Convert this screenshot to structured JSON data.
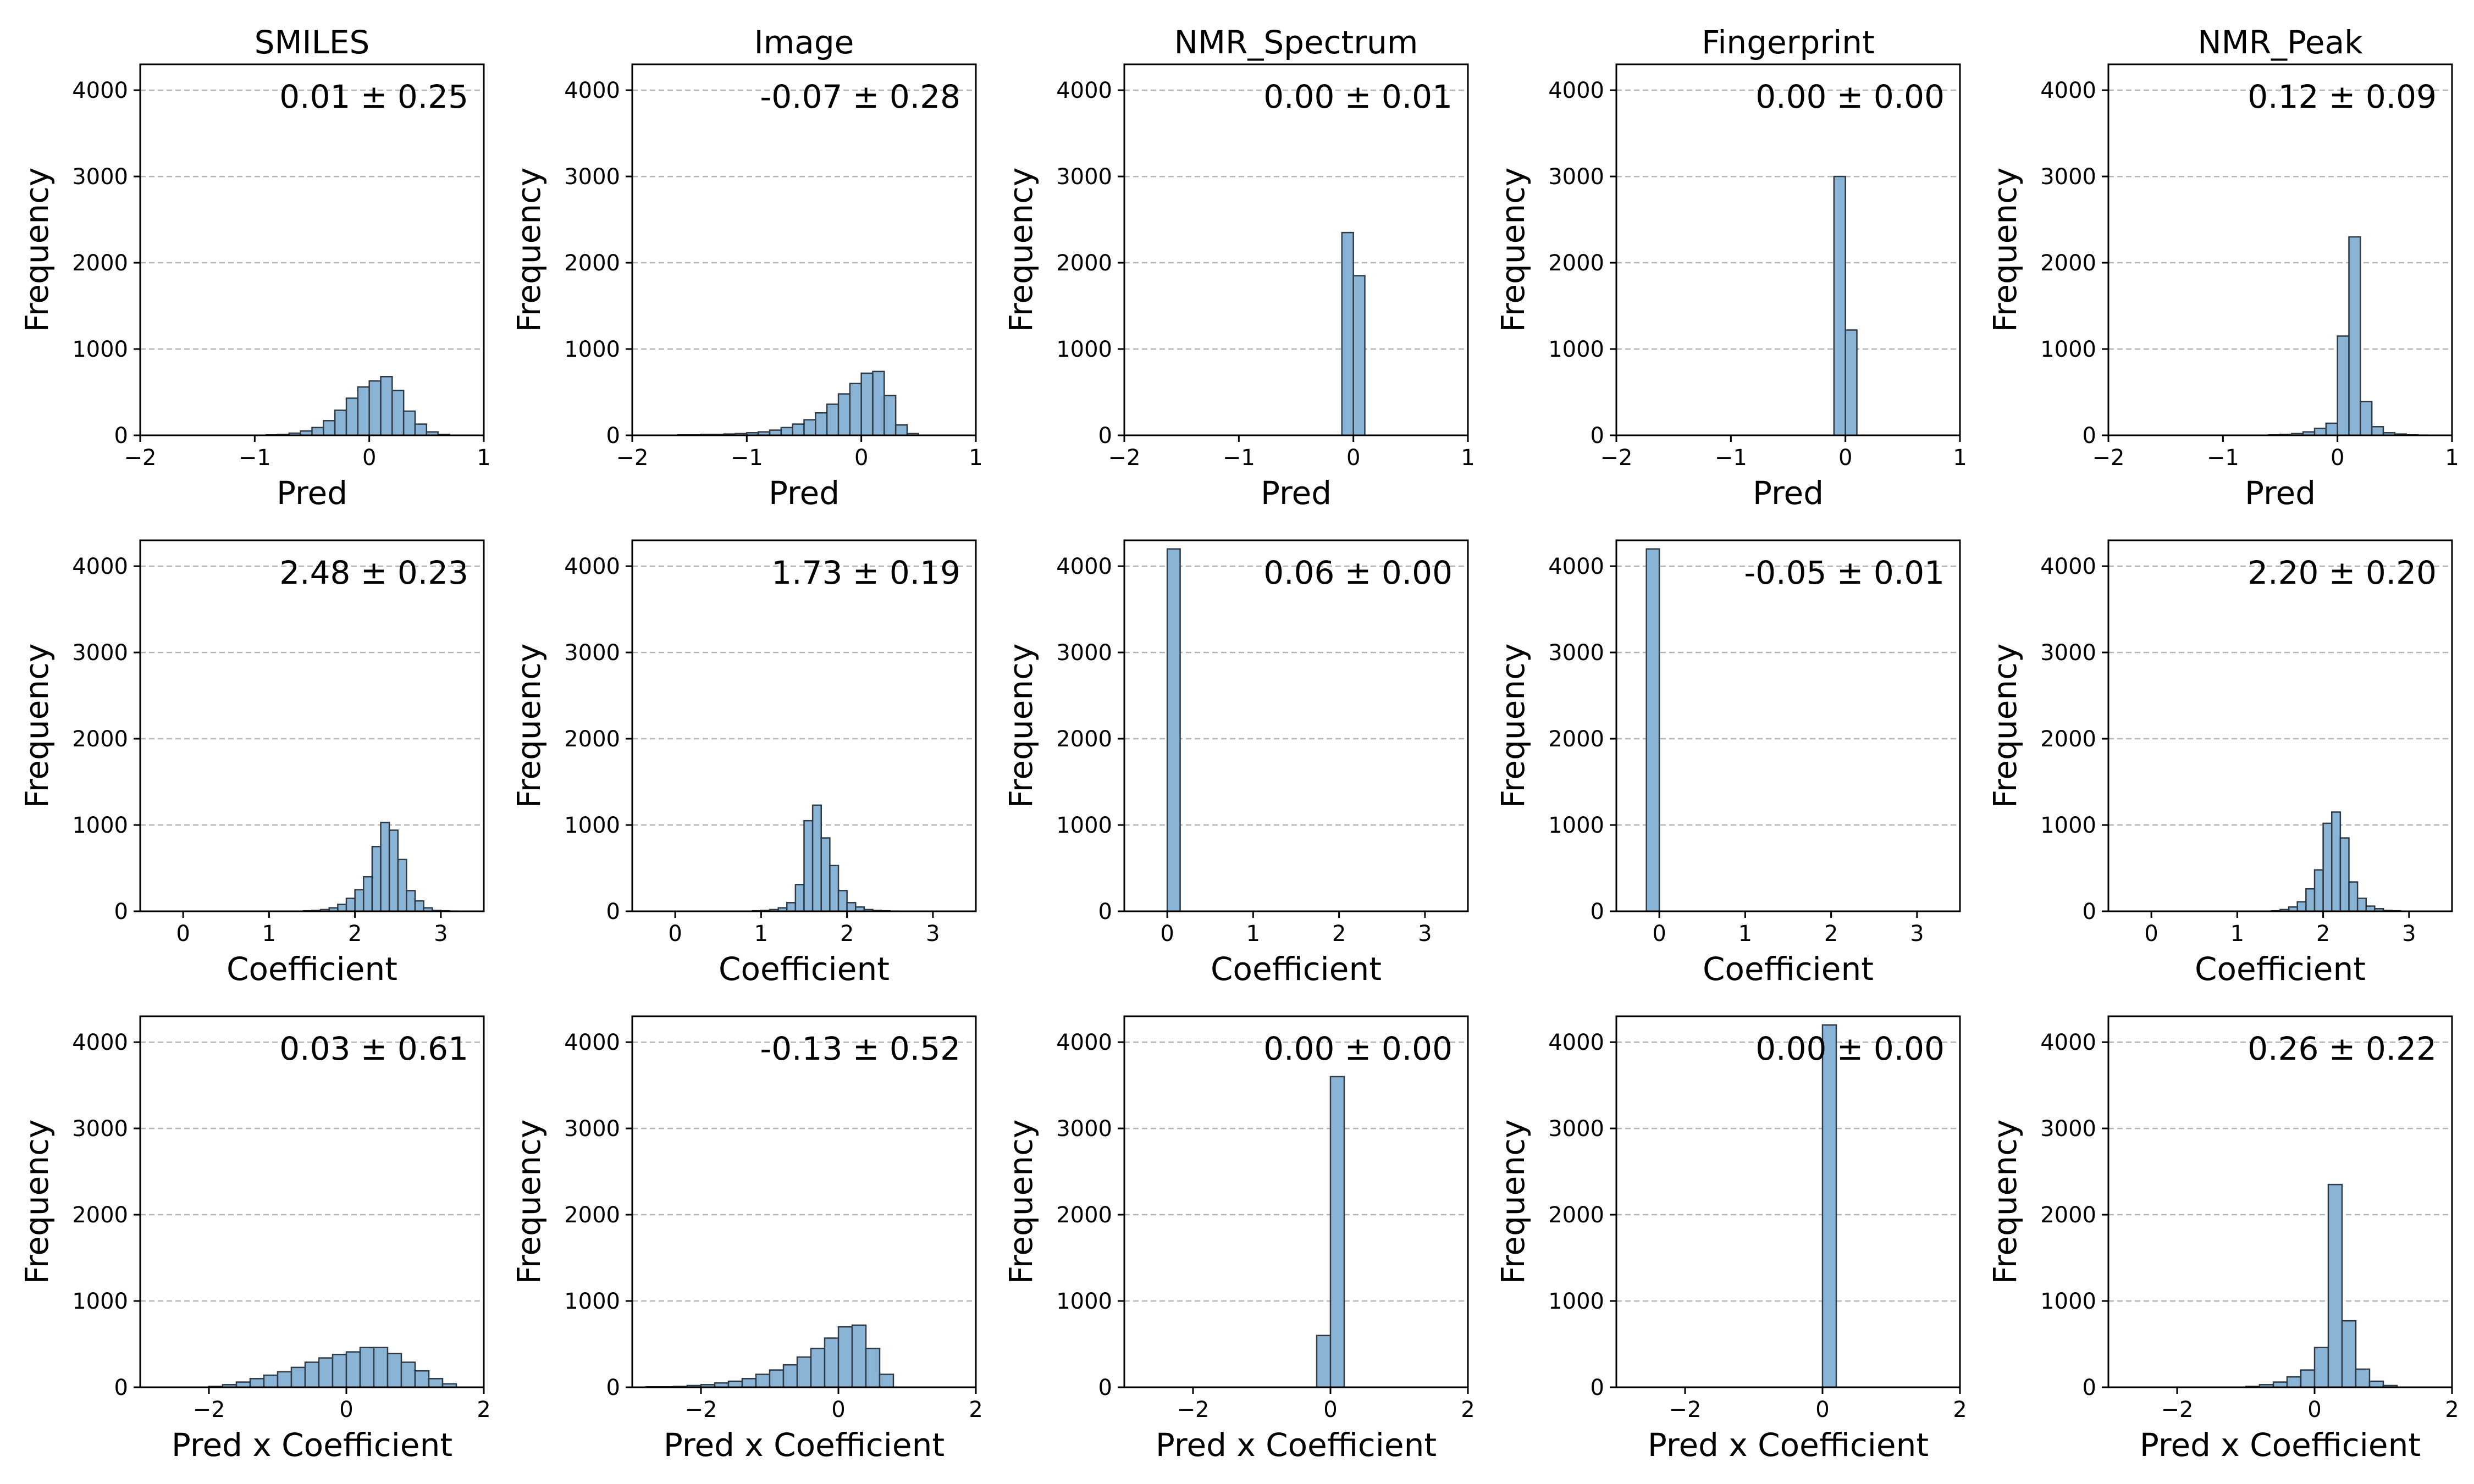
{
  "figure": {
    "columns": [
      "SMILES",
      "Image",
      "NMR_Spectrum",
      "Fingerprint",
      "NMR_Peak"
    ],
    "row_xlabels": [
      "Pred",
      "Coefficient",
      "Pred x Coefficient"
    ],
    "ylabel": "Frequency",
    "bar_color": "#8ab4d6",
    "bar_edge_color": "#2f3a45",
    "grid_color": "#b5b5b5"
  },
  "chart_data": [
    {
      "type": "bar",
      "title": "SMILES",
      "xlabel": "Pred",
      "ylabel": "Frequency",
      "annotation": "0.01 ± 0.25",
      "xlim": [
        -2,
        1
      ],
      "ylim": [
        0,
        4300
      ],
      "xticks": [
        -2,
        -1,
        0,
        1
      ],
      "yticks": [
        0,
        1000,
        2000,
        3000,
        4000
      ],
      "grid": "y",
      "bin_edges": [
        -0.9,
        -0.8,
        -0.7,
        -0.6,
        -0.5,
        -0.4,
        -0.3,
        -0.2,
        -0.1,
        0.0,
        0.1,
        0.2,
        0.3,
        0.4,
        0.5,
        0.6,
        0.7
      ],
      "values": [
        5,
        10,
        25,
        50,
        90,
        170,
        290,
        430,
        560,
        630,
        680,
        520,
        280,
        130,
        40,
        10
      ]
    },
    {
      "type": "bar",
      "title": "Image",
      "xlabel": "Pred",
      "ylabel": "Frequency",
      "annotation": "-0.07 ± 0.28",
      "xlim": [
        -2,
        1
      ],
      "ylim": [
        0,
        4300
      ],
      "xticks": [
        -2,
        -1,
        0,
        1
      ],
      "yticks": [
        0,
        1000,
        2000,
        3000,
        4000
      ],
      "grid": "y",
      "bin_edges": [
        -1.6,
        -1.5,
        -1.4,
        -1.3,
        -1.2,
        -1.1,
        -1.0,
        -0.9,
        -0.8,
        -0.7,
        -0.6,
        -0.5,
        -0.4,
        -0.3,
        -0.2,
        -0.1,
        0.0,
        0.1,
        0.2,
        0.3,
        0.4,
        0.5
      ],
      "values": [
        5,
        5,
        10,
        10,
        15,
        20,
        30,
        40,
        60,
        90,
        130,
        180,
        260,
        360,
        480,
        600,
        720,
        740,
        460,
        120,
        20
      ]
    },
    {
      "type": "bar",
      "title": "NMR_Spectrum",
      "xlabel": "Pred",
      "ylabel": "Frequency",
      "annotation": "0.00 ± 0.01",
      "xlim": [
        -2,
        1
      ],
      "ylim": [
        0,
        4300
      ],
      "xticks": [
        -2,
        -1,
        0,
        1
      ],
      "yticks": [
        0,
        1000,
        2000,
        3000,
        4000
      ],
      "grid": "y",
      "bin_edges": [
        -0.1,
        0.0,
        0.1
      ],
      "values": [
        2350,
        1850
      ]
    },
    {
      "type": "bar",
      "title": "Fingerprint",
      "xlabel": "Pred",
      "ylabel": "Frequency",
      "annotation": "0.00 ± 0.00",
      "xlim": [
        -2,
        1
      ],
      "ylim": [
        0,
        4300
      ],
      "xticks": [
        -2,
        -1,
        0,
        1
      ],
      "yticks": [
        0,
        1000,
        2000,
        3000,
        4000
      ],
      "grid": "y",
      "bin_edges": [
        -0.1,
        0.0,
        0.1
      ],
      "values": [
        3000,
        1220
      ]
    },
    {
      "type": "bar",
      "title": "NMR_Peak",
      "xlabel": "Pred",
      "ylabel": "Frequency",
      "annotation": "0.12 ± 0.09",
      "xlim": [
        -2,
        1
      ],
      "ylim": [
        0,
        4300
      ],
      "xticks": [
        -2,
        -1,
        0,
        1
      ],
      "yticks": [
        0,
        1000,
        2000,
        3000,
        4000
      ],
      "grid": "y",
      "bin_edges": [
        -0.6,
        -0.5,
        -0.4,
        -0.3,
        -0.2,
        -0.1,
        0.0,
        0.1,
        0.2,
        0.3,
        0.4,
        0.5,
        0.6,
        0.7,
        0.8
      ],
      "values": [
        5,
        10,
        20,
        40,
        80,
        140,
        1150,
        2300,
        390,
        100,
        30,
        15,
        5,
        2
      ]
    },
    {
      "type": "bar",
      "title": "",
      "xlabel": "Coefficient",
      "ylabel": "Frequency",
      "annotation": "2.48 ± 0.23",
      "xlim": [
        -0.5,
        3.5
      ],
      "ylim": [
        0,
        4300
      ],
      "xticks": [
        0,
        1,
        2,
        3
      ],
      "yticks": [
        0,
        1000,
        2000,
        3000,
        4000
      ],
      "grid": "y",
      "bin_edges": [
        1.4,
        1.5,
        1.6,
        1.7,
        1.8,
        1.9,
        2.0,
        2.1,
        2.2,
        2.3,
        2.4,
        2.5,
        2.6,
        2.7,
        2.8,
        2.9,
        3.0,
        3.1,
        3.2
      ],
      "values": [
        5,
        10,
        20,
        40,
        80,
        150,
        250,
        400,
        750,
        1030,
        940,
        600,
        240,
        120,
        40,
        10,
        5,
        2
      ]
    },
    {
      "type": "bar",
      "title": "",
      "xlabel": "Coefficient",
      "ylabel": "Frequency",
      "annotation": "1.73 ± 0.19",
      "xlim": [
        -0.5,
        3.5
      ],
      "ylim": [
        0,
        4300
      ],
      "xticks": [
        0,
        1,
        2,
        3
      ],
      "yticks": [
        0,
        1000,
        2000,
        3000,
        4000
      ],
      "grid": "y",
      "bin_edges": [
        0.9,
        1.0,
        1.1,
        1.2,
        1.3,
        1.4,
        1.5,
        1.6,
        1.7,
        1.8,
        1.9,
        2.0,
        2.1,
        2.2,
        2.3,
        2.4,
        2.5,
        2.6
      ],
      "values": [
        5,
        10,
        20,
        40,
        100,
        310,
        1050,
        1230,
        850,
        530,
        240,
        100,
        50,
        20,
        10,
        5,
        2
      ]
    },
    {
      "type": "bar",
      "title": "",
      "xlabel": "Coefficient",
      "ylabel": "Frequency",
      "annotation": "0.06 ± 0.00",
      "xlim": [
        -0.5,
        3.5
      ],
      "ylim": [
        0,
        4300
      ],
      "xticks": [
        0,
        1,
        2,
        3
      ],
      "yticks": [
        0,
        1000,
        2000,
        3000,
        4000
      ],
      "grid": "y",
      "bin_edges": [
        0.0,
        0.15
      ],
      "values": [
        4200
      ]
    },
    {
      "type": "bar",
      "title": "",
      "xlabel": "Coefficient",
      "ylabel": "Frequency",
      "annotation": "-0.05 ± 0.01",
      "xlim": [
        -0.5,
        3.5
      ],
      "ylim": [
        0,
        4300
      ],
      "xticks": [
        0,
        1,
        2,
        3
      ],
      "yticks": [
        0,
        1000,
        2000,
        3000,
        4000
      ],
      "grid": "y",
      "bin_edges": [
        -0.15,
        0.0
      ],
      "values": [
        4200
      ]
    },
    {
      "type": "bar",
      "title": "",
      "xlabel": "Coefficient",
      "ylabel": "Frequency",
      "annotation": "2.20 ± 0.20",
      "xlim": [
        -0.5,
        3.5
      ],
      "ylim": [
        0,
        4300
      ],
      "xticks": [
        0,
        1,
        2,
        3
      ],
      "yticks": [
        0,
        1000,
        2000,
        3000,
        4000
      ],
      "grid": "y",
      "bin_edges": [
        1.4,
        1.5,
        1.6,
        1.7,
        1.8,
        1.9,
        2.0,
        2.1,
        2.2,
        2.3,
        2.4,
        2.5,
        2.6,
        2.7,
        2.8,
        2.9
      ],
      "values": [
        5,
        20,
        50,
        110,
        260,
        480,
        1020,
        1150,
        850,
        340,
        150,
        60,
        30,
        10,
        5
      ]
    },
    {
      "type": "bar",
      "title": "",
      "xlabel": "Pred x Coefficient",
      "ylabel": "Frequency",
      "annotation": "0.03 ± 0.61",
      "xlim": [
        -3,
        2
      ],
      "ylim": [
        0,
        4300
      ],
      "xticks": [
        -2,
        0,
        2
      ],
      "yticks": [
        0,
        1000,
        2000,
        3000,
        4000
      ],
      "grid": "y",
      "bin_edges": [
        -2.0,
        -1.8,
        -1.6,
        -1.4,
        -1.2,
        -1.0,
        -0.8,
        -0.6,
        -0.4,
        -0.2,
        0.0,
        0.2,
        0.4,
        0.6,
        0.8,
        1.0,
        1.2,
        1.4,
        1.6
      ],
      "values": [
        10,
        30,
        60,
        100,
        140,
        180,
        230,
        290,
        340,
        380,
        410,
        460,
        460,
        390,
        290,
        190,
        100,
        40
      ]
    },
    {
      "type": "bar",
      "title": "",
      "xlabel": "Pred x Coefficient",
      "ylabel": "Frequency",
      "annotation": "-0.13 ± 0.52",
      "xlim": [
        -3,
        2
      ],
      "ylim": [
        0,
        4300
      ],
      "xticks": [
        -2,
        0,
        2
      ],
      "yticks": [
        0,
        1000,
        2000,
        3000,
        4000
      ],
      "grid": "y",
      "bin_edges": [
        -2.8,
        -2.6,
        -2.4,
        -2.2,
        -2.0,
        -1.8,
        -1.6,
        -1.4,
        -1.2,
        -1.0,
        -0.8,
        -0.6,
        -0.4,
        -0.2,
        0.0,
        0.2,
        0.4,
        0.6,
        0.8
      ],
      "values": [
        5,
        5,
        10,
        20,
        30,
        50,
        70,
        100,
        150,
        200,
        260,
        350,
        450,
        570,
        700,
        720,
        450,
        150
      ]
    },
    {
      "type": "bar",
      "title": "",
      "xlabel": "Pred x Coefficient",
      "ylabel": "Frequency",
      "annotation": "0.00 ± 0.00",
      "xlim": [
        -3,
        2
      ],
      "ylim": [
        0,
        4300
      ],
      "xticks": [
        -2,
        0,
        2
      ],
      "yticks": [
        0,
        1000,
        2000,
        3000,
        4000
      ],
      "grid": "y",
      "bin_edges": [
        -0.2,
        0.0,
        0.2
      ],
      "values": [
        600,
        3600
      ]
    },
    {
      "type": "bar",
      "title": "",
      "xlabel": "Pred x Coefficient",
      "ylabel": "Frequency",
      "annotation": "0.00 ± 0.00",
      "xlim": [
        -3,
        2
      ],
      "ylim": [
        0,
        4300
      ],
      "xticks": [
        -2,
        0,
        2
      ],
      "yticks": [
        0,
        1000,
        2000,
        3000,
        4000
      ],
      "grid": "y",
      "bin_edges": [
        0.0,
        0.2
      ],
      "values": [
        4200
      ]
    },
    {
      "type": "bar",
      "title": "",
      "xlabel": "Pred x Coefficient",
      "ylabel": "Frequency",
      "annotation": "0.26 ± 0.22",
      "xlim": [
        -3,
        2
      ],
      "ylim": [
        0,
        4300
      ],
      "xticks": [
        -2,
        0,
        2
      ],
      "yticks": [
        0,
        1000,
        2000,
        3000,
        4000
      ],
      "grid": "y",
      "bin_edges": [
        -1.0,
        -0.8,
        -0.6,
        -0.4,
        -0.2,
        0.0,
        0.2,
        0.4,
        0.6,
        0.8,
        1.0,
        1.2
      ],
      "values": [
        10,
        30,
        60,
        120,
        200,
        460,
        2350,
        770,
        210,
        70,
        20
      ]
    }
  ]
}
